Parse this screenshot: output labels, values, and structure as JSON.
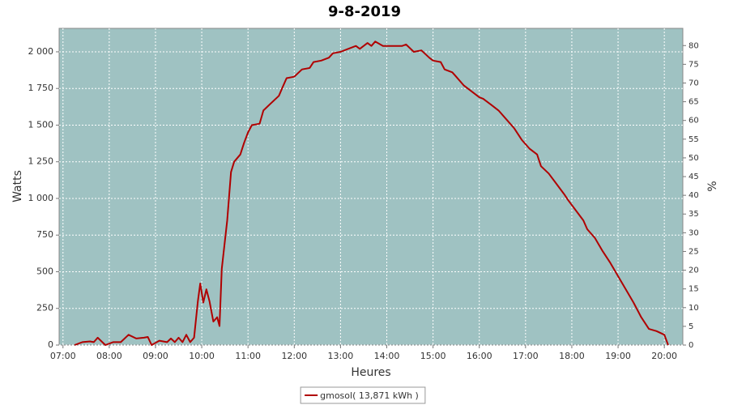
{
  "chart_data": {
    "type": "line",
    "title": "9-8-2019",
    "x_label": "Heures",
    "y_label": "Watts",
    "y2_label": "%",
    "xlim": [
      "06:55",
      "20:24"
    ],
    "xticks": [
      "07:00",
      "08:00",
      "09:00",
      "10:00",
      "11:00",
      "12:00",
      "13:00",
      "14:00",
      "15:00",
      "16:00",
      "17:00",
      "18:00",
      "19:00",
      "20:00"
    ],
    "ylim": [
      0,
      2160
    ],
    "yticks": [
      0,
      250,
      500,
      750,
      {
        "value": 1000,
        "label": "1 000"
      },
      {
        "value": 1250,
        "label": "1 250"
      },
      {
        "value": 1500,
        "label": "1 500"
      },
      {
        "value": 1750,
        "label": "1 750"
      },
      {
        "value": 2000,
        "label": "2 000"
      }
    ],
    "y2lim": [
      0,
      84.6
    ],
    "y2ticks": [
      0,
      5,
      10,
      15,
      20,
      25,
      30,
      35,
      40,
      45,
      50,
      55,
      60,
      65,
      70,
      75,
      80
    ],
    "grid": true,
    "background": "#9fc2c2",
    "x": [
      "07:15",
      "07:25",
      "07:35",
      "07:40",
      "07:45",
      "07:55",
      "08:05",
      "08:15",
      "08:25",
      "08:35",
      "08:45",
      "08:50",
      "08:55",
      "09:05",
      "09:15",
      "09:20",
      "09:25",
      "09:30",
      "09:35",
      "09:40",
      "09:45",
      "09:50",
      "09:55",
      "09:58",
      "10:02",
      "10:06",
      "10:10",
      "10:15",
      "10:20",
      "10:23",
      "10:26",
      "10:33",
      "10:38",
      "10:42",
      "10:50",
      "10:55",
      "11:00",
      "11:05",
      "11:15",
      "11:20",
      "11:30",
      "11:40",
      "11:45",
      "11:50",
      "12:00",
      "12:10",
      "12:20",
      "12:25",
      "12:35",
      "12:45",
      "12:50",
      "13:00",
      "13:10",
      "13:20",
      "13:25",
      "13:35",
      "13:40",
      "13:45",
      "13:55",
      "14:05",
      "14:20",
      "14:25",
      "14:35",
      "14:45",
      "14:55",
      "15:00",
      "15:10",
      "15:15",
      "15:25",
      "15:30",
      "15:40",
      "15:50",
      "16:00",
      "16:05",
      "16:15",
      "16:25",
      "16:35",
      "16:45",
      "16:55",
      "17:05",
      "17:15",
      "17:20",
      "17:30",
      "17:40",
      "17:50",
      "17:55",
      "18:05",
      "18:15",
      "18:20",
      "18:30",
      "18:40",
      "18:50",
      "19:00",
      "19:10",
      "19:20",
      "19:30",
      "19:40",
      "19:50",
      "20:00",
      "20:05"
    ],
    "series": [
      {
        "name": "gmosol( 13,871 kWh )",
        "color": "#b00000",
        "values": [
          0,
          20,
          25,
          20,
          50,
          0,
          20,
          20,
          70,
          45,
          50,
          55,
          0,
          30,
          20,
          45,
          20,
          50,
          20,
          70,
          20,
          50,
          300,
          420,
          290,
          380,
          300,
          160,
          190,
          130,
          520,
          850,
          1180,
          1250,
          1300,
          1380,
          1450,
          1500,
          1510,
          1600,
          1650,
          1700,
          1760,
          1820,
          1830,
          1880,
          1890,
          1930,
          1940,
          1960,
          1990,
          2000,
          2020,
          2040,
          2020,
          2060,
          2040,
          2070,
          2040,
          2040,
          2040,
          2050,
          2000,
          2010,
          1960,
          1940,
          1930,
          1880,
          1860,
          1830,
          1770,
          1730,
          1690,
          1680,
          1640,
          1600,
          1540,
          1480,
          1400,
          1340,
          1300,
          1220,
          1170,
          1100,
          1030,
          990,
          920,
          850,
          790,
          730,
          640,
          560,
          470,
          380,
          290,
          190,
          110,
          95,
          70,
          0
        ]
      }
    ]
  }
}
